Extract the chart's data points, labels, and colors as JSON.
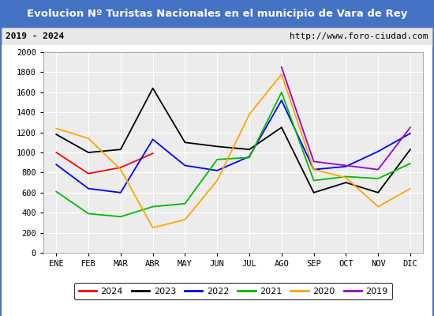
{
  "title": "Evolucion Nº Turistas Nacionales en el municipio de Vara de Rey",
  "subtitle_left": "2019 - 2024",
  "subtitle_right": "http://www.foro-ciudad.com",
  "months": [
    "ENE",
    "FEB",
    "MAR",
    "ABR",
    "MAY",
    "JUN",
    "JUL",
    "AGO",
    "SEP",
    "OCT",
    "NOV",
    "DIC"
  ],
  "series": {
    "2024": [
      1000,
      790,
      850,
      990,
      null,
      null,
      null,
      null,
      null,
      null,
      null,
      null
    ],
    "2023": [
      1180,
      1000,
      1030,
      1640,
      1100,
      1060,
      1030,
      1250,
      600,
      700,
      600,
      1030
    ],
    "2022": [
      880,
      640,
      600,
      1130,
      870,
      820,
      960,
      1520,
      830,
      860,
      1010,
      1190
    ],
    "2021": [
      610,
      390,
      360,
      460,
      490,
      930,
      950,
      1600,
      720,
      760,
      740,
      890
    ],
    "2020": [
      1240,
      1140,
      830,
      250,
      330,
      720,
      1380,
      1780,
      830,
      750,
      460,
      640
    ],
    "2019": [
      null,
      null,
      null,
      null,
      null,
      null,
      null,
      1850,
      910,
      870,
      830,
      1250
    ]
  },
  "colors": {
    "2024": "#ff0000",
    "2023": "#000000",
    "2022": "#0000ff",
    "2021": "#00bb00",
    "2020": "#ffa500",
    "2019": "#9900cc"
  },
  "ylim": [
    0,
    2000
  ],
  "yticks": [
    0,
    200,
    400,
    600,
    800,
    1000,
    1200,
    1400,
    1600,
    1800,
    2000
  ],
  "title_bg_color": "#4472c4",
  "title_text_color": "#ffffff",
  "subtitle_bg_color": "#e8e8e8",
  "plot_bg_color": "#ececec",
  "grid_color": "#ffffff",
  "outer_bg_color": "#4472c4",
  "inner_bg_color": "#ffffff",
  "legend_years": [
    "2024",
    "2023",
    "2022",
    "2021",
    "2020",
    "2019"
  ]
}
